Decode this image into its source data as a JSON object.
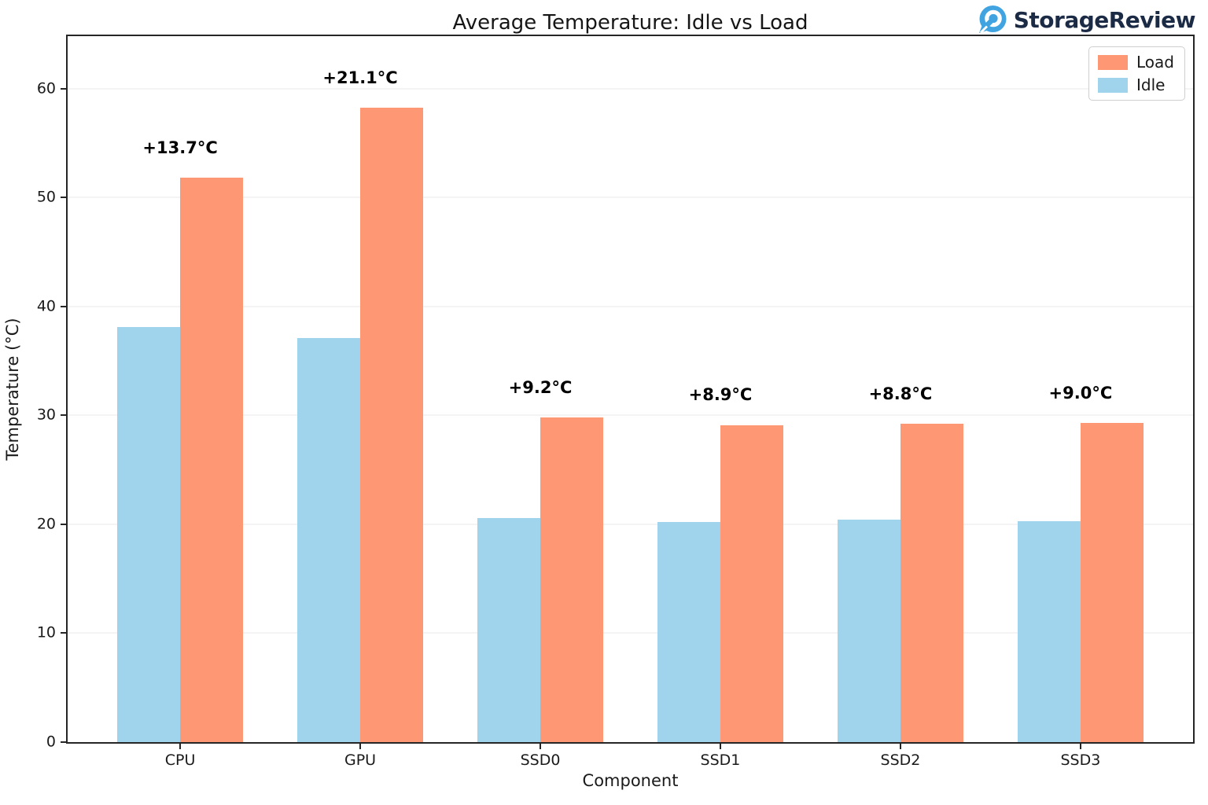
{
  "logo": {
    "brand": "StorageReview",
    "brand_color": "#1c2b45",
    "icon": "storagereview-icon",
    "icon_color": "#41a3e0"
  },
  "chart_data": {
    "type": "bar",
    "title": "Average Temperature: Idle vs Load",
    "xlabel": "Component",
    "ylabel": "Temperature (°C)",
    "categories": [
      "CPU",
      "GPU",
      "SSD0",
      "SSD1",
      "SSD2",
      "SSD3"
    ],
    "series": [
      {
        "name": "Idle",
        "color": "#A0D4EC",
        "values": [
          38.1,
          37.1,
          20.6,
          20.2,
          20.4,
          20.3
        ]
      },
      {
        "name": "Load",
        "color": "#FD9774",
        "values": [
          51.8,
          58.2,
          29.8,
          29.1,
          29.2,
          29.3
        ]
      }
    ],
    "annotations": [
      "+13.7°C",
      "+21.1°C",
      "+9.2°C",
      "+8.9°C",
      "+8.8°C",
      "+9.0°C"
    ],
    "yticks": [
      0,
      10,
      20,
      30,
      40,
      50,
      60
    ],
    "ylim": [
      0,
      64.8
    ],
    "bar_width": 0.35,
    "x_padding": 0.625,
    "grid": true,
    "legend": {
      "position": "upper right",
      "entries": [
        {
          "label": "Load",
          "color": "#FD9774"
        },
        {
          "label": "Idle",
          "color": "#A0D4EC"
        }
      ]
    }
  }
}
